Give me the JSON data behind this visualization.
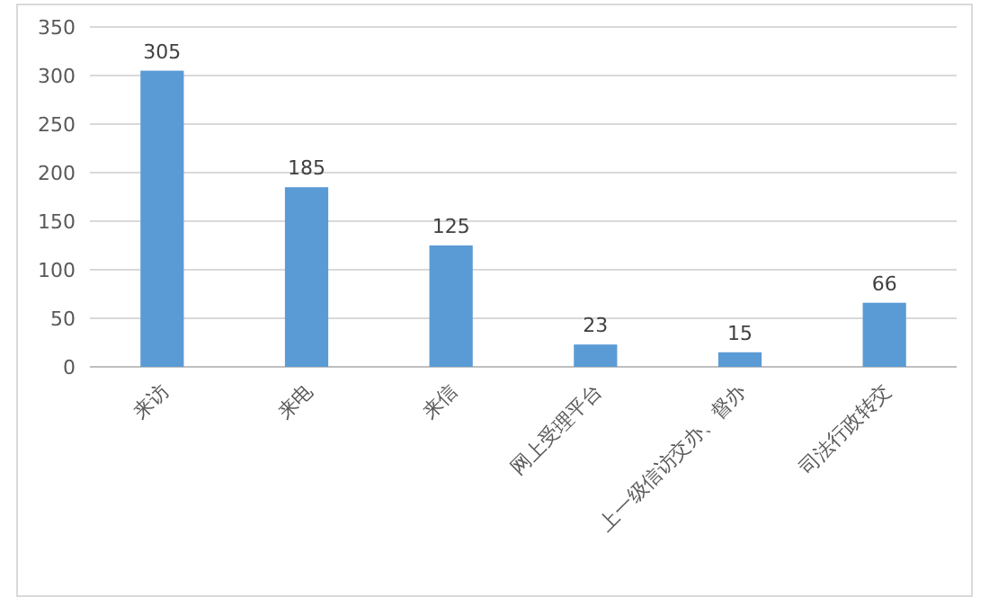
{
  "chart_data": {
    "type": "bar",
    "categories": [
      "来访",
      "来电",
      "来信",
      "网上受理平台",
      "上一级信访交办、督办",
      "司法行政转交"
    ],
    "values": [
      305,
      185,
      125,
      23,
      15,
      66
    ],
    "color": "#5b9bd5",
    "ylim": [
      0,
      350
    ],
    "yticks": [
      0,
      50,
      100,
      150,
      200,
      250,
      300,
      350
    ],
    "grid": "y",
    "data_labels": true
  }
}
